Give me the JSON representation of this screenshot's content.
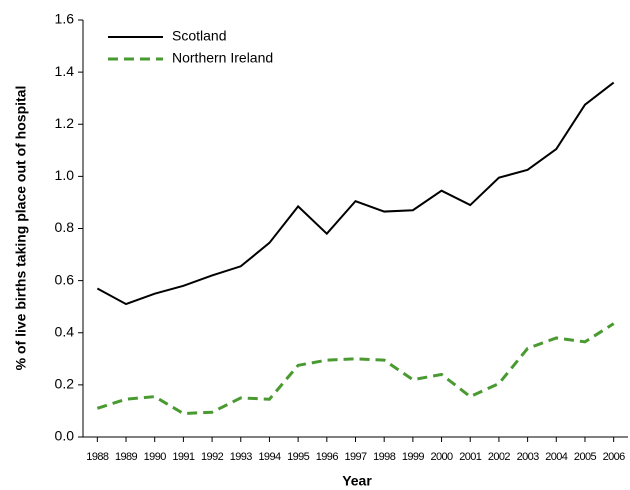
{
  "chart_data": {
    "type": "line",
    "x_label": "Year",
    "y_label": "% of live births taking place out of hospital",
    "categories": [
      "1988",
      "1989",
      "1990",
      "1991",
      "1992",
      "1993",
      "1994",
      "1995",
      "1996",
      "1997",
      "1998",
      "1999",
      "2000",
      "2001",
      "2002",
      "2003",
      "2004",
      "2005",
      "2006"
    ],
    "series": [
      {
        "name": "Scotland",
        "color": "#000000",
        "dash": false,
        "values": [
          0.57,
          0.51,
          0.55,
          0.58,
          0.62,
          0.655,
          0.745,
          0.885,
          0.78,
          0.905,
          0.865,
          0.87,
          0.945,
          0.89,
          0.995,
          1.025,
          1.105,
          1.275,
          1.36
        ]
      },
      {
        "name": "Northern Ireland",
        "color": "#4a9a32",
        "dash": true,
        "values": [
          0.11,
          0.145,
          0.155,
          0.09,
          0.095,
          0.15,
          0.145,
          0.275,
          0.295,
          0.3,
          0.295,
          0.22,
          0.24,
          0.155,
          0.205,
          0.34,
          0.38,
          0.365,
          0.435
        ]
      }
    ],
    "ylim": [
      0,
      1.6
    ],
    "yticks": [
      {
        "value": 0,
        "label": "0.0"
      },
      {
        "value": 0.2,
        "label": "0.2"
      },
      {
        "value": 0.4,
        "label": "0.4"
      },
      {
        "value": 0.6,
        "label": "0.6"
      },
      {
        "value": 0.8,
        "label": "0.8"
      },
      {
        "value": 1,
        "label": "1.0"
      },
      {
        "value": 1.2,
        "label": "1.2"
      },
      {
        "value": 1.4,
        "label": "1.4"
      },
      {
        "value": 1.6,
        "label": "1.6"
      }
    ]
  }
}
